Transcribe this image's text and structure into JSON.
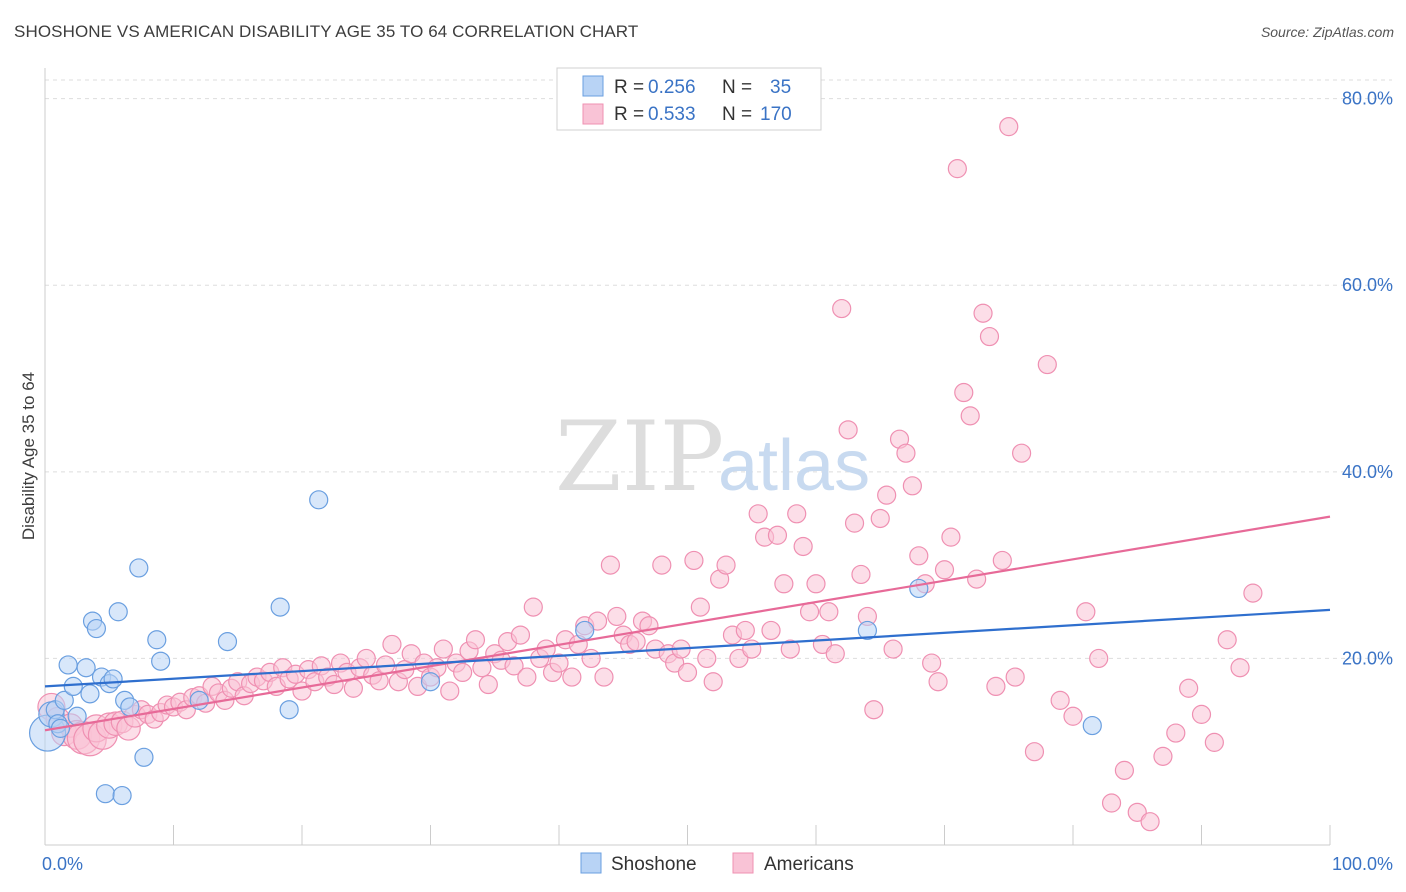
{
  "title": "SHOSHONE VS AMERICAN DISABILITY AGE 35 TO 64 CORRELATION CHART",
  "source": "Source: ZipAtlas.com",
  "watermark": {
    "zip": "ZIP",
    "atlas": "atlas"
  },
  "colors": {
    "shoshone_fill": "#b8d3f5",
    "shoshone_stroke": "#6a9fe0",
    "shoshone_line": "#2f6fce",
    "americans_fill": "#f9c3d6",
    "americans_stroke": "#ef90b2",
    "americans_line": "#e76a98",
    "grid": "#dddddd",
    "axis_text": "#3a73c5"
  },
  "legend": {
    "r_label": "R =",
    "n_label": "N =",
    "entries": [
      {
        "r": "0.256",
        "n": "35"
      },
      {
        "r": "0.533",
        "n": "170"
      }
    ]
  },
  "chart_data": {
    "type": "scatter",
    "title": "SHOSHONE VS AMERICAN DISABILITY AGE 35 TO 64 CORRELATION CHART",
    "xlabel": "",
    "ylabel": "Disability Age 35 to 64",
    "xlim": [
      0,
      100
    ],
    "ylim": [
      0,
      82
    ],
    "x_tick_labels": [
      "0.0%",
      "100.0%"
    ],
    "y_ticks": [
      20,
      40,
      60,
      80
    ],
    "y_tick_labels": [
      "20.0%",
      "40.0%",
      "60.0%",
      "80.0%"
    ],
    "grid": true,
    "legend_position": "top-center",
    "series": [
      {
        "name": "Shoshone",
        "trend": {
          "x": [
            0,
            100
          ],
          "y": [
            17.0,
            25.2
          ]
        },
        "points": [
          [
            0.2,
            12.0,
            2.0
          ],
          [
            0.5,
            14.0,
            1.4
          ],
          [
            0.8,
            14.5,
            1.0
          ],
          [
            1.0,
            13.0,
            1.0
          ],
          [
            1.2,
            12.5,
            1.0
          ],
          [
            1.5,
            15.5,
            1.0
          ],
          [
            1.8,
            19.3,
            1.0
          ],
          [
            2.2,
            17.0,
            1.0
          ],
          [
            2.5,
            13.8,
            1.0
          ],
          [
            3.2,
            19.0,
            1.0
          ],
          [
            3.5,
            16.2,
            1.0
          ],
          [
            3.7,
            24.0,
            1.0
          ],
          [
            4.0,
            23.2,
            1.0
          ],
          [
            4.4,
            18.0,
            1.0
          ],
          [
            4.7,
            5.5,
            1.0
          ],
          [
            5.0,
            17.3,
            1.0
          ],
          [
            5.3,
            17.8,
            1.0
          ],
          [
            5.7,
            25.0,
            1.0
          ],
          [
            6.0,
            5.3,
            1.0
          ],
          [
            6.2,
            15.5,
            1.0
          ],
          [
            6.6,
            14.8,
            1.0
          ],
          [
            7.3,
            29.7,
            1.0
          ],
          [
            7.7,
            9.4,
            1.0
          ],
          [
            8.7,
            22.0,
            1.0
          ],
          [
            9.0,
            19.7,
            1.0
          ],
          [
            12.0,
            15.5,
            1.0
          ],
          [
            14.2,
            21.8,
            1.0
          ],
          [
            18.3,
            25.5,
            1.0
          ],
          [
            19.0,
            14.5,
            1.0
          ],
          [
            21.3,
            37.0,
            1.0
          ],
          [
            30.0,
            17.5,
            1.0
          ],
          [
            42.0,
            23.0,
            1.0
          ],
          [
            64.0,
            23.0,
            1.0
          ],
          [
            68.0,
            27.5,
            1.0
          ],
          [
            81.5,
            12.8,
            1.0
          ]
        ]
      },
      {
        "name": "Americans",
        "trend": {
          "x": [
            0,
            100
          ],
          "y": [
            12.3,
            35.2
          ]
        },
        "points": [
          [
            0.5,
            14.8,
            1.5
          ],
          [
            1.0,
            13.5,
            1.3
          ],
          [
            1.5,
            12.0,
            1.4
          ],
          [
            2.0,
            12.8,
            1.3
          ],
          [
            2.5,
            11.8,
            1.6
          ],
          [
            3.0,
            11.5,
            1.8
          ],
          [
            3.5,
            11.3,
            1.8
          ],
          [
            4.0,
            12.5,
            1.5
          ],
          [
            4.5,
            11.8,
            1.6
          ],
          [
            5.0,
            12.8,
            1.4
          ],
          [
            5.5,
            13.0,
            1.3
          ],
          [
            6.0,
            13.2,
            1.2
          ],
          [
            6.5,
            12.5,
            1.3
          ],
          [
            7.0,
            13.8,
            1.2
          ],
          [
            7.5,
            14.5,
            1.0
          ],
          [
            8.0,
            14.0,
            1.0
          ],
          [
            8.5,
            13.5,
            1.0
          ],
          [
            9.0,
            14.2,
            1.0
          ],
          [
            9.5,
            15.0,
            1.0
          ],
          [
            10.0,
            14.8,
            1.0
          ],
          [
            10.5,
            15.3,
            1.0
          ],
          [
            11.0,
            14.5,
            1.0
          ],
          [
            11.5,
            15.8,
            1.0
          ],
          [
            12.0,
            16.0,
            1.0
          ],
          [
            12.5,
            15.2,
            1.0
          ],
          [
            13.0,
            17.0,
            1.0
          ],
          [
            13.5,
            16.3,
            1.0
          ],
          [
            14.0,
            15.5,
            1.0
          ],
          [
            14.5,
            16.8,
            1.0
          ],
          [
            15.0,
            17.5,
            1.0
          ],
          [
            15.5,
            16.0,
            1.0
          ],
          [
            16.0,
            17.3,
            1.0
          ],
          [
            16.5,
            18.0,
            1.0
          ],
          [
            17.0,
            17.6,
            1.0
          ],
          [
            17.5,
            18.5,
            1.0
          ],
          [
            18.0,
            17.0,
            1.0
          ],
          [
            18.5,
            19.0,
            1.0
          ],
          [
            19.0,
            17.8,
            1.0
          ],
          [
            19.5,
            18.3,
            1.0
          ],
          [
            20.0,
            16.5,
            1.0
          ],
          [
            20.5,
            18.8,
            1.0
          ],
          [
            21.0,
            17.5,
            1.0
          ],
          [
            21.5,
            19.2,
            1.0
          ],
          [
            22.0,
            18.0,
            1.0
          ],
          [
            22.5,
            17.2,
            1.0
          ],
          [
            23.0,
            19.5,
            1.0
          ],
          [
            23.5,
            18.5,
            1.0
          ],
          [
            24.0,
            16.8,
            1.0
          ],
          [
            24.5,
            19.0,
            1.0
          ],
          [
            25.0,
            20.0,
            1.0
          ],
          [
            25.5,
            18.2,
            1.0
          ],
          [
            26.0,
            17.6,
            1.0
          ],
          [
            26.5,
            19.3,
            1.0
          ],
          [
            27.0,
            21.5,
            1.0
          ],
          [
            27.5,
            17.5,
            1.0
          ],
          [
            28.0,
            18.8,
            1.0
          ],
          [
            28.5,
            20.5,
            1.0
          ],
          [
            29.0,
            17.0,
            1.0
          ],
          [
            29.5,
            19.5,
            1.0
          ],
          [
            30.0,
            18.0,
            1.0
          ],
          [
            30.5,
            19.0,
            1.0
          ],
          [
            31.0,
            21.0,
            1.0
          ],
          [
            31.5,
            16.5,
            1.0
          ],
          [
            32.0,
            19.5,
            1.0
          ],
          [
            32.5,
            18.5,
            1.0
          ],
          [
            33.0,
            20.8,
            1.0
          ],
          [
            33.5,
            22.0,
            1.0
          ],
          [
            34.0,
            19.0,
            1.0
          ],
          [
            34.5,
            17.2,
            1.0
          ],
          [
            35.0,
            20.5,
            1.0
          ],
          [
            35.5,
            19.8,
            1.0
          ],
          [
            36.0,
            21.8,
            1.0
          ],
          [
            36.5,
            19.2,
            1.0
          ],
          [
            37.0,
            22.5,
            1.0
          ],
          [
            37.5,
            18.0,
            1.0
          ],
          [
            38.0,
            25.5,
            1.0
          ],
          [
            38.5,
            20.0,
            1.0
          ],
          [
            39.0,
            21.0,
            1.0
          ],
          [
            39.5,
            18.5,
            1.0
          ],
          [
            40.0,
            19.5,
            1.0
          ],
          [
            40.5,
            22.0,
            1.0
          ],
          [
            41.0,
            18.0,
            1.0
          ],
          [
            41.5,
            21.5,
            1.0
          ],
          [
            42.0,
            23.5,
            1.0
          ],
          [
            42.5,
            20.0,
            1.0
          ],
          [
            43.0,
            24.0,
            1.0
          ],
          [
            43.5,
            18.0,
            1.0
          ],
          [
            44.0,
            30.0,
            1.0
          ],
          [
            44.5,
            24.5,
            1.0
          ],
          [
            45.0,
            22.5,
            1.0
          ],
          [
            45.5,
            21.5,
            1.0
          ],
          [
            46.0,
            21.8,
            1.0
          ],
          [
            46.5,
            24.0,
            1.0
          ],
          [
            47.0,
            23.5,
            1.0
          ],
          [
            47.5,
            21.0,
            1.0
          ],
          [
            48.0,
            30.0,
            1.0
          ],
          [
            48.5,
            20.5,
            1.0
          ],
          [
            49.0,
            19.5,
            1.0
          ],
          [
            49.5,
            21.0,
            1.0
          ],
          [
            50.0,
            18.5,
            1.0
          ],
          [
            50.5,
            30.5,
            1.0
          ],
          [
            51.0,
            25.5,
            1.0
          ],
          [
            51.5,
            20.0,
            1.0
          ],
          [
            52.0,
            17.5,
            1.0
          ],
          [
            52.5,
            28.5,
            1.0
          ],
          [
            53.0,
            30.0,
            1.0
          ],
          [
            53.5,
            22.5,
            1.0
          ],
          [
            54.0,
            20.0,
            1.0
          ],
          [
            54.5,
            23.0,
            1.0
          ],
          [
            55.0,
            21.0,
            1.0
          ],
          [
            55.5,
            35.5,
            1.0
          ],
          [
            56.0,
            33.0,
            1.0
          ],
          [
            56.5,
            23.0,
            1.0
          ],
          [
            57.0,
            33.2,
            1.0
          ],
          [
            57.5,
            28.0,
            1.0
          ],
          [
            58.0,
            21.0,
            1.0
          ],
          [
            58.5,
            35.5,
            1.0
          ],
          [
            59.0,
            32.0,
            1.0
          ],
          [
            59.5,
            25.0,
            1.0
          ],
          [
            60.0,
            28.0,
            1.0
          ],
          [
            60.5,
            21.5,
            1.0
          ],
          [
            61.0,
            25.0,
            1.0
          ],
          [
            61.5,
            20.5,
            1.0
          ],
          [
            62.0,
            57.5,
            1.0
          ],
          [
            62.5,
            44.5,
            1.0
          ],
          [
            63.0,
            34.5,
            1.0
          ],
          [
            63.5,
            29.0,
            1.0
          ],
          [
            64.0,
            24.5,
            1.0
          ],
          [
            64.5,
            14.5,
            1.0
          ],
          [
            65.0,
            35.0,
            1.0
          ],
          [
            65.5,
            37.5,
            1.0
          ],
          [
            66.0,
            21.0,
            1.0
          ],
          [
            66.5,
            43.5,
            1.0
          ],
          [
            67.0,
            42.0,
            1.0
          ],
          [
            67.5,
            38.5,
            1.0
          ],
          [
            68.0,
            31.0,
            1.0
          ],
          [
            68.5,
            28.0,
            1.0
          ],
          [
            69.0,
            19.5,
            1.0
          ],
          [
            69.5,
            17.5,
            1.0
          ],
          [
            70.0,
            29.5,
            1.0
          ],
          [
            70.5,
            33.0,
            1.0
          ],
          [
            71.0,
            72.5,
            1.0
          ],
          [
            71.5,
            48.5,
            1.0
          ],
          [
            72.0,
            46.0,
            1.0
          ],
          [
            72.5,
            28.5,
            1.0
          ],
          [
            73.0,
            57.0,
            1.0
          ],
          [
            73.5,
            54.5,
            1.0
          ],
          [
            74.0,
            17.0,
            1.0
          ],
          [
            74.5,
            30.5,
            1.0
          ],
          [
            75.0,
            77.0,
            1.0
          ],
          [
            75.5,
            18.0,
            1.0
          ],
          [
            76.0,
            42.0,
            1.0
          ],
          [
            77.0,
            10.0,
            1.0
          ],
          [
            78.0,
            51.5,
            1.0
          ],
          [
            79.0,
            15.5,
            1.0
          ],
          [
            80.0,
            13.8,
            1.0
          ],
          [
            81.0,
            25.0,
            1.0
          ],
          [
            82.0,
            20.0,
            1.0
          ],
          [
            83.0,
            4.5,
            1.0
          ],
          [
            84.0,
            8.0,
            1.0
          ],
          [
            85.0,
            3.5,
            1.0
          ],
          [
            86.0,
            2.5,
            1.0
          ],
          [
            87.0,
            9.5,
            1.0
          ],
          [
            88.0,
            12.0,
            1.0
          ],
          [
            89.0,
            16.8,
            1.0
          ],
          [
            90.0,
            14.0,
            1.0
          ],
          [
            91.0,
            11.0,
            1.0
          ],
          [
            92.0,
            22.0,
            1.0
          ],
          [
            93.0,
            19.0,
            1.0
          ],
          [
            94.0,
            27.0,
            1.0
          ]
        ]
      }
    ]
  },
  "bottom_legend": [
    "Shoshone",
    "Americans"
  ]
}
